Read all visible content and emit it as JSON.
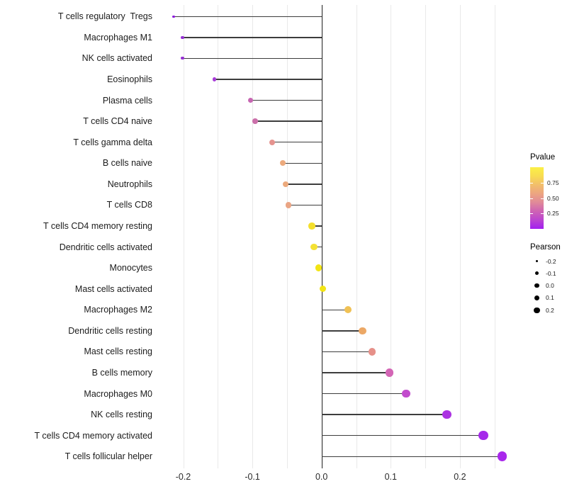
{
  "chart_data": {
    "type": "scatter",
    "style": "horizontal-lollipop",
    "title": "",
    "xlabel": "",
    "ylabel": "",
    "xlim": [
      -0.238,
      0.285
    ],
    "grid": "light vertical gridlines every 0.05, solid dark vertical line at 0",
    "legend_position": "right",
    "x_ticks": [
      {
        "value": -0.2,
        "label": "-0.2"
      },
      {
        "value": -0.1,
        "label": "-0.1"
      },
      {
        "value": 0.0,
        "label": "0.0"
      },
      {
        "value": 0.1,
        "label": "0.1"
      },
      {
        "value": 0.2,
        "label": "0.2"
      }
    ],
    "grid_values": [
      -0.2,
      -0.15,
      -0.1,
      -0.05,
      0.05,
      0.1,
      0.15,
      0.2,
      0.25
    ],
    "points": [
      {
        "label": "T cells regulatory  Tregs",
        "pearson": -0.214,
        "pvalue_est": 0.02,
        "color": "#8B15DB"
      },
      {
        "label": "Macrophages M1",
        "pearson": -0.201,
        "pvalue_est": 0.09,
        "color": "#9530D2"
      },
      {
        "label": "NK cells activated",
        "pearson": -0.201,
        "pvalue_est": 0.09,
        "color": "#9530D2"
      },
      {
        "label": "Eosinophils",
        "pearson": -0.155,
        "pvalue_est": 0.14,
        "color": "#A83CD8"
      },
      {
        "label": "Plasma cells",
        "pearson": -0.103,
        "pvalue_est": 0.33,
        "color": "#C766B2"
      },
      {
        "label": "T cells CD4 naive",
        "pearson": -0.096,
        "pvalue_est": 0.36,
        "color": "#CB70AA"
      },
      {
        "label": "T cells gamma delta",
        "pearson": -0.071,
        "pvalue_est": 0.5,
        "color": "#E5938F"
      },
      {
        "label": "B cells naive",
        "pearson": -0.056,
        "pvalue_est": 0.6,
        "color": "#ECAA7D"
      },
      {
        "label": "Neutrophils",
        "pearson": -0.052,
        "pvalue_est": 0.6,
        "color": "#ECAA7D"
      },
      {
        "label": "T cells CD8",
        "pearson": -0.048,
        "pvalue_est": 0.57,
        "color": "#EAA584"
      },
      {
        "label": "T cells CD4 memory resting",
        "pearson": -0.014,
        "pvalue_est": 0.9,
        "color": "#F4DF2C"
      },
      {
        "label": "Dendritic cells activated",
        "pearson": -0.011,
        "pvalue_est": 0.91,
        "color": "#F4E134"
      },
      {
        "label": "Monocytes",
        "pearson": -0.004,
        "pvalue_est": 0.97,
        "color": "#F2E414"
      },
      {
        "label": "Mast cells activated",
        "pearson": 0.002,
        "pvalue_est": 0.98,
        "color": "#F2E414"
      },
      {
        "label": "Macrophages M2",
        "pearson": 0.038,
        "pvalue_est": 0.76,
        "color": "#F0C154"
      },
      {
        "label": "Dendritic cells resting",
        "pearson": 0.059,
        "pvalue_est": 0.62,
        "color": "#ECA866"
      },
      {
        "label": "Mast cells resting",
        "pearson": 0.073,
        "pvalue_est": 0.5,
        "color": "#E69089"
      },
      {
        "label": "B cells memory",
        "pearson": 0.098,
        "pvalue_est": 0.31,
        "color": "#D365B5"
      },
      {
        "label": "Macrophages M0",
        "pearson": 0.122,
        "pvalue_est": 0.21,
        "color": "#C24CCD"
      },
      {
        "label": "NK cells resting",
        "pearson": 0.181,
        "pvalue_est": 0.11,
        "color": "#AC33E2"
      },
      {
        "label": "T cells CD4 memory activated",
        "pearson": 0.234,
        "pvalue_est": 0.05,
        "color": "#A529EA"
      },
      {
        "label": "T cells follicular helper",
        "pearson": 0.261,
        "pvalue_est": 0.03,
        "color": "#A928EC"
      }
    ],
    "legend": {
      "pvalue": {
        "title": "Pvalue",
        "range": [
          0,
          1
        ],
        "ticks": [
          {
            "label": "0.75",
            "value": 0.75
          },
          {
            "label": "0.50",
            "value": 0.5
          },
          {
            "label": "0.25",
            "value": 0.25
          }
        ],
        "gradient_stops_bottom_to_top": [
          "#A21EF0",
          "#BB44D0",
          "#CE63B4",
          "#E08A99",
          "#ECA481",
          "#F2BE6B",
          "#F8DC52",
          "#FBF046"
        ]
      },
      "pearson": {
        "title": "Pearson",
        "entries": [
          {
            "label": "-0.2",
            "value": -0.2
          },
          {
            "label": "-0.1",
            "value": -0.1
          },
          {
            "label": "0.0",
            "value": 0.0
          },
          {
            "label": "0.1",
            "value": 0.1
          },
          {
            "label": "0.2",
            "value": 0.2
          }
        ]
      }
    }
  }
}
